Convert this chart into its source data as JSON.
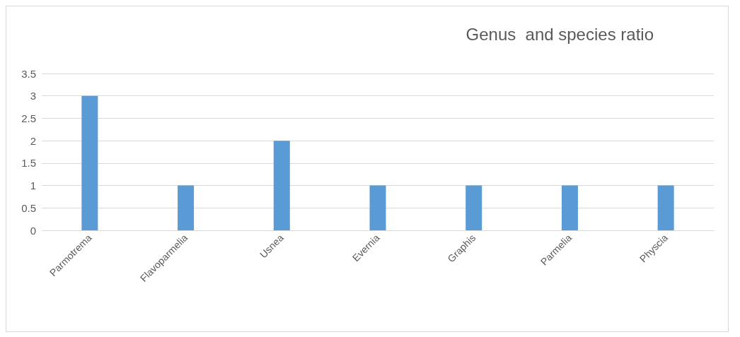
{
  "chart_data": {
    "type": "bar",
    "title": "Genus  and species ratio",
    "categories": [
      "Parmotrema",
      "Flavoparmelia",
      "Usnea",
      "Evernia",
      "Graphis",
      "Parmelia",
      "Physcia"
    ],
    "values": [
      3,
      1,
      2,
      1,
      1,
      1,
      1
    ],
    "color": "#5b9bd5",
    "ylim": [
      0,
      3.5
    ],
    "yticks": [
      0,
      0.5,
      1,
      1.5,
      2,
      2.5,
      3,
      3.5
    ],
    "grid": "y"
  }
}
